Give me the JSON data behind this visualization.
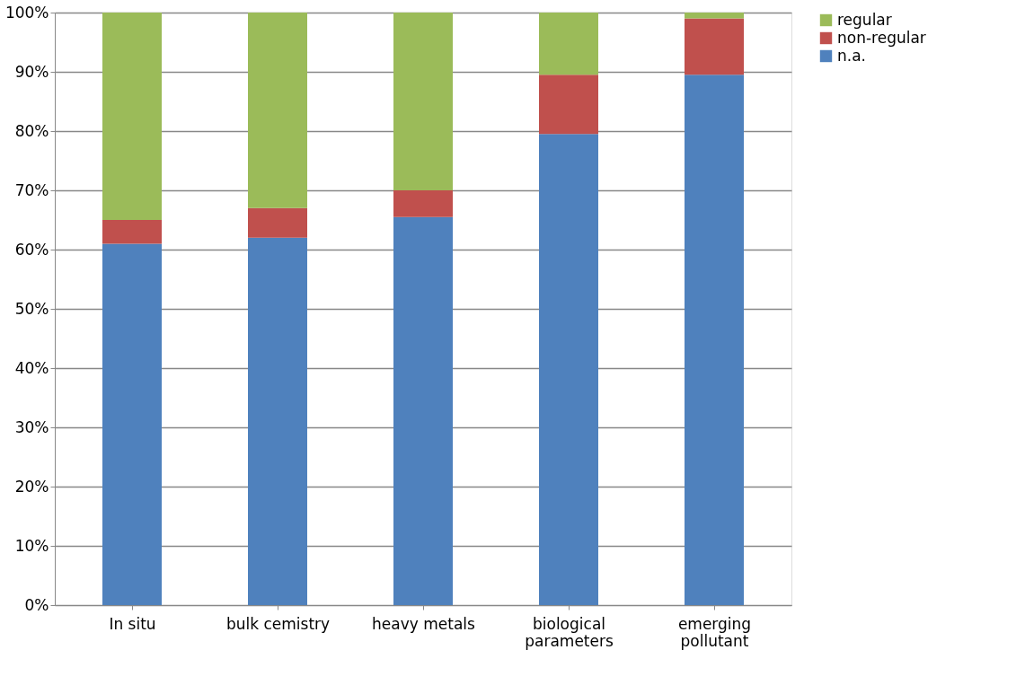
{
  "chart_data": {
    "type": "bar",
    "stacked": true,
    "categories": [
      "In situ",
      "bulk cemistry",
      "heavy metals",
      "biological\nparameters",
      "emerging\npollutant"
    ],
    "series": [
      {
        "name": "n.a.",
        "color": "#4f81bd",
        "values": [
          61,
          62,
          65.5,
          79.5,
          89.5
        ]
      },
      {
        "name": "non-regular",
        "color": "#c0504d",
        "values": [
          4,
          5,
          4.5,
          10,
          9.5
        ]
      },
      {
        "name": "regular",
        "color": "#9bbb59",
        "values": [
          35,
          33,
          30,
          10.5,
          1
        ]
      }
    ],
    "ylim": [
      0,
      100
    ],
    "yticks": [
      {
        "value": 0,
        "label": "0%"
      },
      {
        "value": 10,
        "label": "10%"
      },
      {
        "value": 20,
        "label": "20%"
      },
      {
        "value": 30,
        "label": "30%"
      },
      {
        "value": 40,
        "label": "40%"
      },
      {
        "value": 50,
        "label": "50%"
      },
      {
        "value": 60,
        "label": "60%"
      },
      {
        "value": 70,
        "label": "70%"
      },
      {
        "value": 80,
        "label": "80%"
      },
      {
        "value": 90,
        "label": "90%"
      },
      {
        "value": 100,
        "label": "100%"
      }
    ],
    "grid": "y",
    "legend": "right"
  }
}
